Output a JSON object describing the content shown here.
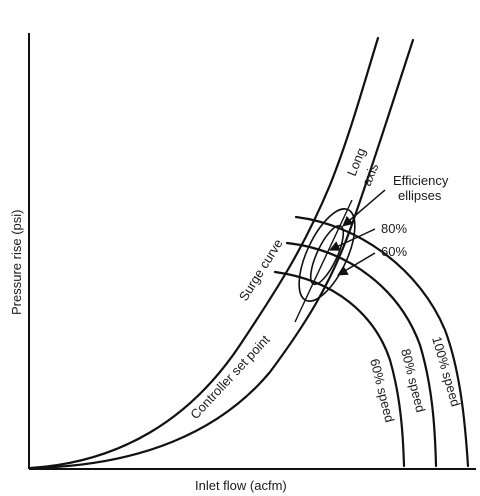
{
  "axes": {
    "x_label": "Inlet flow (acfm)",
    "y_label": "Pressure rise (psi)"
  },
  "curves": {
    "surge_curve": "Surge curve",
    "controller_set_point": "Controller set point"
  },
  "speed_curves": [
    {
      "label": "60% speed"
    },
    {
      "label": "80% speed"
    },
    {
      "label": "100% speed"
    }
  ],
  "annotations": {
    "long_axis": [
      "Long",
      "axis"
    ],
    "efficiency_ellipses": [
      "Efficiency",
      "ellipses"
    ],
    "pct_80": "80%",
    "pct_60": "60%"
  }
}
